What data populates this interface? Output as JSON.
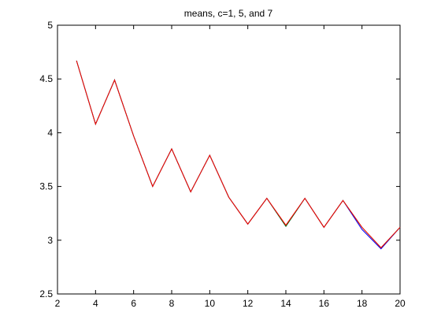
{
  "chart_data": {
    "type": "line",
    "title": "means, c=1, 5, and 7",
    "x": [
      3,
      4,
      5,
      6,
      7,
      8,
      9,
      10,
      11,
      12,
      13,
      14,
      15,
      16,
      17,
      18,
      19,
      20
    ],
    "series": [
      {
        "color": "#0000ff",
        "values": [
          4.67,
          4.08,
          4.49,
          3.97,
          3.5,
          3.85,
          3.45,
          3.79,
          3.4,
          3.15,
          3.39,
          3.13,
          3.39,
          3.12,
          3.37,
          3.1,
          2.92,
          3.12
        ]
      },
      {
        "color": "#008000",
        "values": [
          4.67,
          4.08,
          4.49,
          3.97,
          3.5,
          3.85,
          3.45,
          3.79,
          3.4,
          3.15,
          3.39,
          3.13,
          3.39,
          3.12,
          3.37,
          3.12,
          2.93,
          3.12
        ]
      },
      {
        "color": "#ff0000",
        "values": [
          4.67,
          4.08,
          4.49,
          3.97,
          3.5,
          3.85,
          3.45,
          3.79,
          3.4,
          3.15,
          3.39,
          3.14,
          3.39,
          3.12,
          3.37,
          3.12,
          2.93,
          3.12
        ]
      }
    ],
    "xlim": [
      2,
      20
    ],
    "xticks": [
      2,
      4,
      6,
      8,
      10,
      12,
      14,
      16,
      18,
      20
    ],
    "ylim": [
      2.5,
      5
    ],
    "yticks": [
      2.5,
      3,
      3.5,
      4,
      4.5,
      5
    ],
    "grid": false
  }
}
